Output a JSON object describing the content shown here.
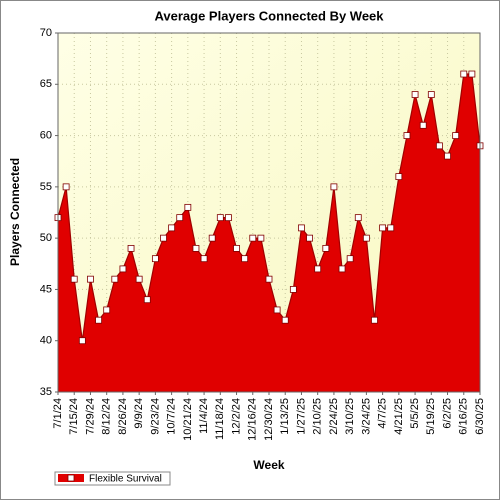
{
  "chart_data": {
    "type": "area",
    "title": "Average Players Connected By Week",
    "x_label": "Week",
    "y_label": "Players Connected",
    "categories": [
      "7/1/24",
      null,
      "7/15/24",
      null,
      "7/29/24",
      null,
      "8/12/24",
      null,
      "8/26/24",
      null,
      "9/9/24",
      null,
      "9/23/24",
      null,
      "10/7/24",
      null,
      "10/21/24",
      null,
      "11/4/24",
      null,
      "11/18/24",
      null,
      "12/2/24",
      null,
      "12/16/24",
      null,
      "12/30/24",
      null,
      "1/13/25",
      null,
      "1/27/25",
      null,
      "2/10/25",
      null,
      "2/24/25",
      null,
      "3/10/25",
      null,
      "3/24/25",
      null,
      "4/7/25",
      null,
      "4/21/25",
      null,
      "5/5/25",
      null,
      "5/19/25",
      null,
      "6/2/25",
      null,
      "6/16/25",
      null,
      "6/30/25"
    ],
    "series": [
      {
        "name": "Flexible Survival",
        "color": "#e00000",
        "values": [
          52,
          55,
          46,
          40,
          46,
          42,
          43,
          46,
          47,
          49,
          46,
          44,
          48,
          50,
          51,
          52,
          53,
          49,
          48,
          50,
          52,
          52,
          49,
          48,
          50,
          50,
          46,
          43,
          42,
          45,
          51,
          50,
          47,
          49,
          55,
          47,
          48,
          52,
          50,
          42,
          51,
          51,
          56,
          60,
          64,
          61,
          64,
          59,
          58,
          60,
          66,
          66,
          59
        ]
      }
    ],
    "ylim": [
      35,
      70
    ],
    "yticks": [
      35,
      40,
      45,
      50,
      55,
      60,
      65,
      70
    ],
    "grid": true,
    "legend": "bottom-left"
  }
}
